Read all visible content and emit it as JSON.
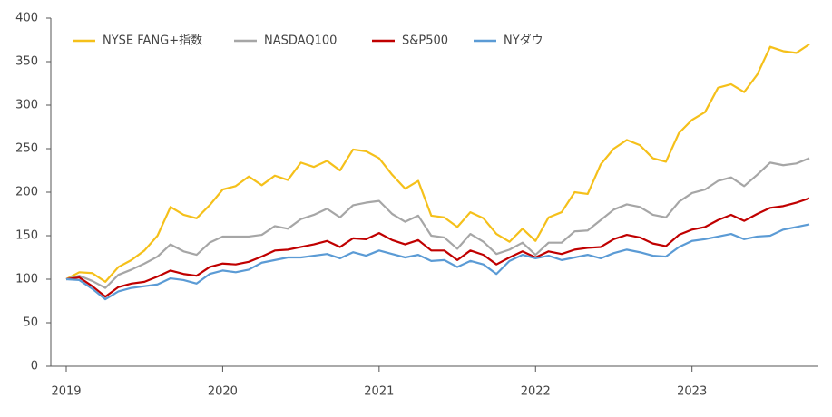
{
  "chart_data": {
    "type": "line",
    "categories": [
      "2019",
      null,
      null,
      null,
      null,
      null,
      null,
      null,
      null,
      null,
      null,
      null,
      "2020",
      null,
      null,
      null,
      null,
      null,
      null,
      null,
      null,
      null,
      null,
      null,
      "2021",
      null,
      null,
      null,
      null,
      null,
      null,
      null,
      null,
      null,
      null,
      null,
      "2022",
      null,
      null,
      null,
      null,
      null,
      null,
      null,
      null,
      null,
      null,
      null,
      "2023",
      null,
      null,
      null,
      null,
      null,
      null,
      null,
      null,
      null
    ],
    "series": [
      {
        "name": "NYSE FANG+指数",
        "color": "#f5c01a",
        "values": [
          100,
          108,
          107,
          97,
          114,
          122,
          133,
          150,
          183,
          174,
          170,
          185,
          203,
          207,
          218,
          208,
          219,
          214,
          234,
          229,
          236,
          225,
          249,
          247,
          239,
          220,
          204,
          213,
          173,
          171,
          160,
          177,
          170,
          152,
          143,
          158,
          144,
          171,
          177,
          200,
          198,
          232,
          250,
          260,
          254,
          239,
          235,
          268,
          283,
          292,
          320,
          324,
          315,
          335,
          367,
          362,
          360,
          370
        ]
      },
      {
        "name": "NASDAQ100",
        "color": "#a6a6a6",
        "values": [
          100,
          104,
          98,
          90,
          105,
          111,
          118,
          126,
          140,
          132,
          128,
          142,
          149,
          149,
          149,
          151,
          161,
          158,
          169,
          174,
          181,
          171,
          185,
          188,
          190,
          175,
          166,
          173,
          150,
          148,
          135,
          152,
          143,
          129,
          134,
          142,
          128,
          142,
          142,
          155,
          156,
          168,
          180,
          186,
          183,
          174,
          171,
          189,
          199,
          203,
          213,
          217,
          207,
          220,
          234,
          231,
          233,
          239
        ]
      },
      {
        "name": "S&P500",
        "color": "#c00000",
        "values": [
          100,
          102,
          92,
          80,
          91,
          95,
          97,
          103,
          110,
          106,
          104,
          114,
          118,
          117,
          120,
          126,
          133,
          134,
          137,
          140,
          144,
          137,
          147,
          146,
          153,
          145,
          140,
          145,
          133,
          133,
          122,
          133,
          128,
          117,
          125,
          132,
          125,
          132,
          129,
          134,
          136,
          137,
          146,
          151,
          148,
          141,
          138,
          151,
          157,
          160,
          168,
          174,
          167,
          175,
          182,
          184,
          188,
          193
        ]
      },
      {
        "name": "NYダウ",
        "color": "#5b9bd5",
        "values": [
          100,
          99,
          89,
          77,
          86,
          90,
          92,
          94,
          101,
          99,
          95,
          106,
          110,
          108,
          111,
          119,
          122,
          125,
          125,
          127,
          129,
          124,
          131,
          127,
          133,
          129,
          125,
          128,
          121,
          122,
          114,
          121,
          117,
          106,
          121,
          128,
          124,
          127,
          122,
          125,
          128,
          124,
          130,
          134,
          131,
          127,
          126,
          137,
          144,
          146,
          149,
          152,
          146,
          149,
          150,
          157,
          160,
          163
        ]
      }
    ],
    "ylim": [
      0,
      400
    ],
    "yticks": [
      0,
      50,
      100,
      150,
      200,
      250,
      300,
      350,
      400
    ],
    "legend": "upper left",
    "grid": false
  }
}
